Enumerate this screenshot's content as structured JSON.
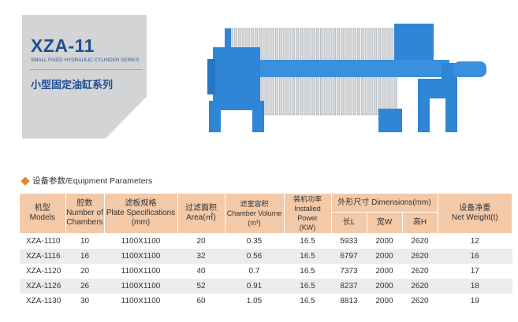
{
  "header": {
    "title": "XZA-11",
    "subtitle": "SMALL FIXED HYDRAULIC CYLINDER SERIES",
    "title_cn": "小型固定油缸系列"
  },
  "colors": {
    "brand_blue": "#1f4e96",
    "machine_blue": "#2f86d6",
    "header_bg": "#f3c9a8",
    "accent": "#e8832f"
  },
  "section": {
    "icon": "orange-diamond-icon",
    "label": "设备参数/Equipment Parameters"
  },
  "table": {
    "headers": {
      "model": [
        "机型",
        "Models"
      ],
      "chambers": [
        "腔数",
        "Number of",
        "Chambers"
      ],
      "plate": [
        "滤板规格",
        "Plate Specifications",
        "(mm)"
      ],
      "area": [
        "过滤面积",
        "Area(㎡)"
      ],
      "volume": [
        "滤室容积",
        "Chamber Volume",
        "(m³)"
      ],
      "power": [
        "装机功率",
        "Installed Power",
        "(KW)"
      ],
      "dimensions": "外形尺寸 Dimensions(mm)",
      "length": "长L",
      "width": "宽W",
      "height": "高H",
      "weight": [
        "设备净重",
        "Net Weight(t)"
      ]
    },
    "rows": [
      [
        "XZA-1110",
        "10",
        "1100X1100",
        "20",
        "0.35",
        "16.5",
        "5933",
        "2000",
        "2620",
        "12"
      ],
      [
        "XZA-1116",
        "16",
        "1100X1100",
        "32",
        "0.56",
        "16.5",
        "6797",
        "2000",
        "2620",
        "16"
      ],
      [
        "XZA-1120",
        "20",
        "1100X1100",
        "40",
        "0.7",
        "16.5",
        "7373",
        "2000",
        "2620",
        "17"
      ],
      [
        "XZA-1126",
        "26",
        "1100X1100",
        "52",
        "0.91",
        "16.5",
        "8237",
        "2000",
        "2620",
        "18"
      ],
      [
        "XZA-1130",
        "30",
        "1100X1100",
        "60",
        "1.05",
        "16.5",
        "8813",
        "2000",
        "2620",
        "19"
      ]
    ]
  }
}
